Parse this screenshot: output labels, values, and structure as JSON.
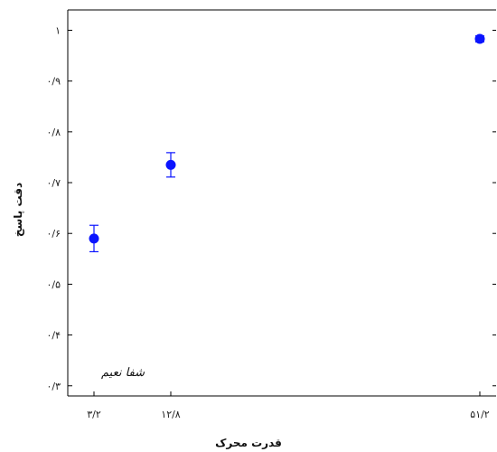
{
  "chart_data": {
    "type": "scatter",
    "xlabel": "قدرت محرک",
    "ylabel": "دقت پاسخ",
    "x_ticks": [
      {
        "value": 3.2,
        "label": "۳/۲"
      },
      {
        "value": 12.8,
        "label": "۱۲/۸"
      },
      {
        "value": 51.2,
        "label": "۵۱/۲"
      }
    ],
    "y_ticks": [
      {
        "value": 0.3,
        "label": "۰/۳"
      },
      {
        "value": 0.4,
        "label": "۰/۴"
      },
      {
        "value": 0.5,
        "label": "۰/۵"
      },
      {
        "value": 0.6,
        "label": "۰/۶"
      },
      {
        "value": 0.7,
        "label": "۰/۷"
      },
      {
        "value": 0.8,
        "label": "۰/۸"
      },
      {
        "value": 0.9,
        "label": "۰/۹"
      },
      {
        "value": 1.0,
        "label": "۱"
      }
    ],
    "ylim": [
      0.28,
      1.04
    ],
    "grid": false,
    "series": [
      {
        "points": [
          {
            "x": 3.2,
            "y": 0.59,
            "err": 0.026
          },
          {
            "x": 12.8,
            "y": 0.735,
            "err": 0.024
          },
          {
            "x": 51.2,
            "y": 0.983,
            "err": 0.006
          }
        ]
      }
    ],
    "marker_color": "#0a14ff",
    "watermark": "شفا نعیم"
  }
}
